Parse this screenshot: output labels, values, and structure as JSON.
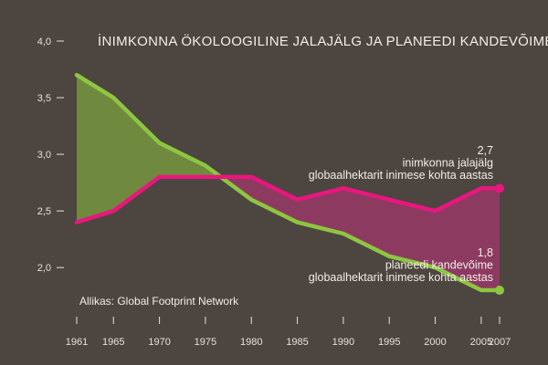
{
  "chart_data": {
    "type": "line",
    "title": "İNIMKONNA ÖKOLOOGILINE JALAJÄLG JA PLANEEDI KANDEVÕIME",
    "x": [
      1961,
      1965,
      1970,
      1975,
      1980,
      1985,
      1990,
      1995,
      2000,
      2005,
      2007
    ],
    "x_tick_labels": [
      "1961",
      "1965",
      "1970",
      "1975",
      "1980",
      "1985",
      "1990",
      "1995",
      "2000",
      "2005",
      "2007"
    ],
    "y_tick_values": [
      2.0,
      2.5,
      3.0,
      3.5,
      4.0
    ],
    "y_tick_labels": [
      "2,0",
      "2,5",
      "3,0",
      "3,5",
      "4,0"
    ],
    "ylim": [
      1.76,
      4.0
    ],
    "grid": false,
    "series": [
      {
        "color": "#8dc63f",
        "values": [
          3.7,
          3.5,
          3.1,
          2.9,
          2.6,
          2.4,
          2.3,
          2.1,
          2.0,
          1.8,
          1.8
        ],
        "end_label": [
          "1,8",
          "planeedi kandevõime",
          "globaalhektarit inimese kohta aastas"
        ]
      },
      {
        "color": "#e8177d",
        "values": [
          2.4,
          2.5,
          2.8,
          2.8,
          2.8,
          2.6,
          2.7,
          2.6,
          2.5,
          2.7,
          2.7
        ],
        "end_label": [
          "2,7",
          "inimkonna jalajälg",
          "globaalhektarit inimese kohta aastas"
        ]
      }
    ],
    "fill_colors": {
      "green_above": "#6f8a3e",
      "pink_above": "#8c3a60"
    },
    "source": "Allikas: Global Footprint Network"
  }
}
